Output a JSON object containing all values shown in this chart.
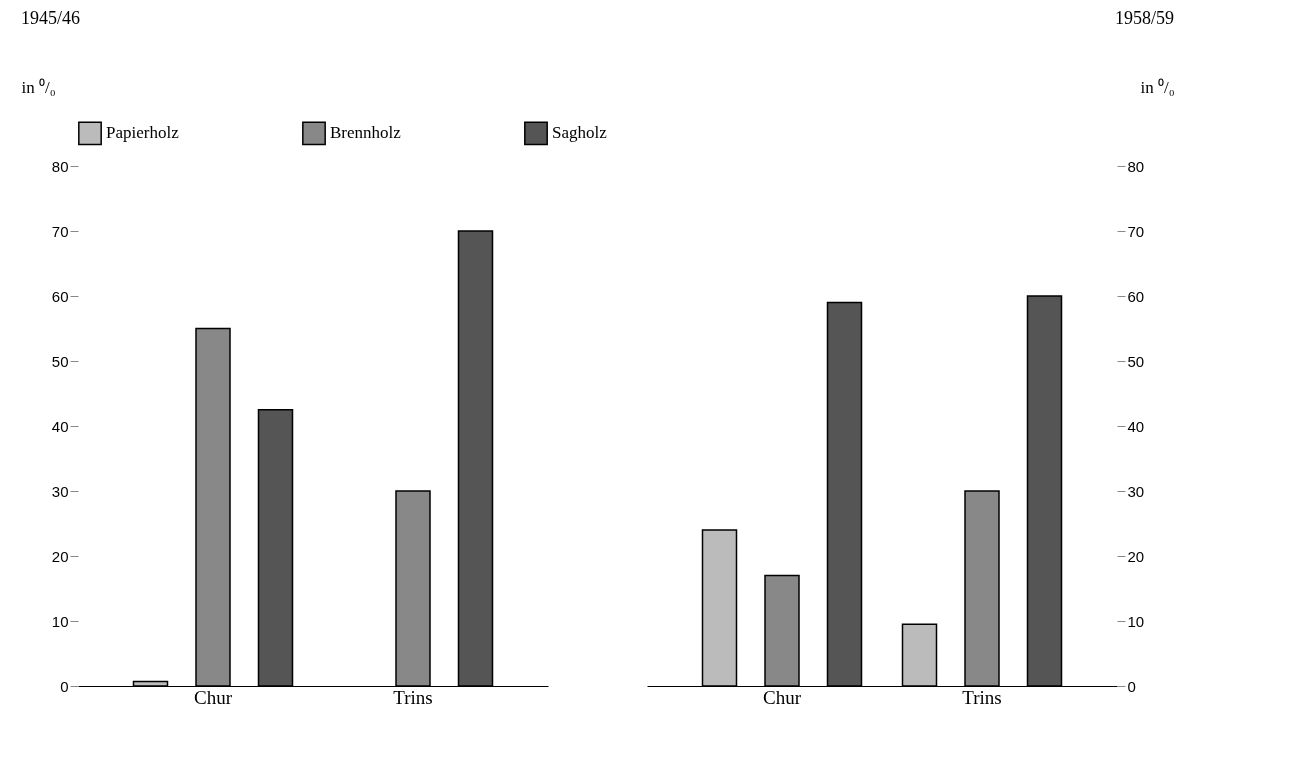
{
  "chart_data": [
    {
      "type": "bar",
      "title": "1945/46",
      "ylabel": "in ⁰/₀",
      "categories": [
        "Chur",
        "Trins"
      ],
      "ylim": [
        0,
        80
      ],
      "yticks": [
        0,
        10,
        20,
        30,
        40,
        50,
        60,
        70,
        80
      ],
      "grid": false,
      "legend": "top",
      "series": [
        {
          "name": "Papierholz",
          "color": "#bbbbbb",
          "values": [
            0.7,
            null
          ]
        },
        {
          "name": "Brennholz",
          "color": "#888888",
          "values": [
            55,
            30
          ]
        },
        {
          "name": "Sagholz",
          "color": "#555555",
          "values": [
            42.5,
            70
          ]
        }
      ]
    },
    {
      "type": "bar",
      "title": "1958/59",
      "y2label": "in ⁰/₀",
      "categories": [
        "Chur",
        "Trins"
      ],
      "y2lim": [
        0,
        80
      ],
      "y2ticks": [
        0,
        10,
        20,
        30,
        40,
        50,
        60,
        70,
        80
      ],
      "grid": false,
      "series": [
        {
          "name": "Papierholz",
          "color": "#bbbbbb",
          "axis": "y2",
          "values": [
            24,
            9.5
          ]
        },
        {
          "name": "Brennholz",
          "color": "#888888",
          "axis": "y2",
          "values": [
            17,
            30
          ]
        },
        {
          "name": "Sagholz",
          "color": "#555555",
          "axis": "y2",
          "values": [
            59,
            60
          ]
        }
      ]
    }
  ]
}
